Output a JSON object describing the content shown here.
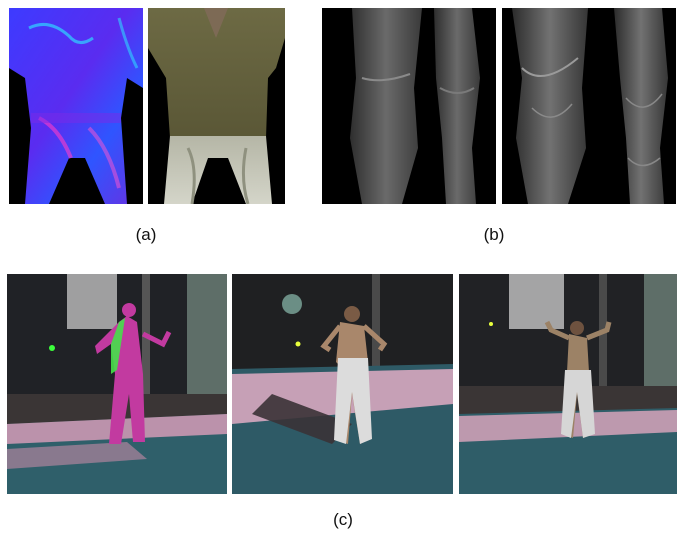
{
  "figure": {
    "captions": {
      "a": "(a)",
      "b": "(b)",
      "c": "(c)"
    },
    "panels": {
      "a_left": "normal-map-torso",
      "a_right": "textured-torso",
      "b_left": "legs-geometry-coarse",
      "b_right": "legs-geometry-detailed",
      "c_left": "scene-normal-overlay",
      "c_middle": "scene-relit",
      "c_right": "scene-captured"
    }
  }
}
